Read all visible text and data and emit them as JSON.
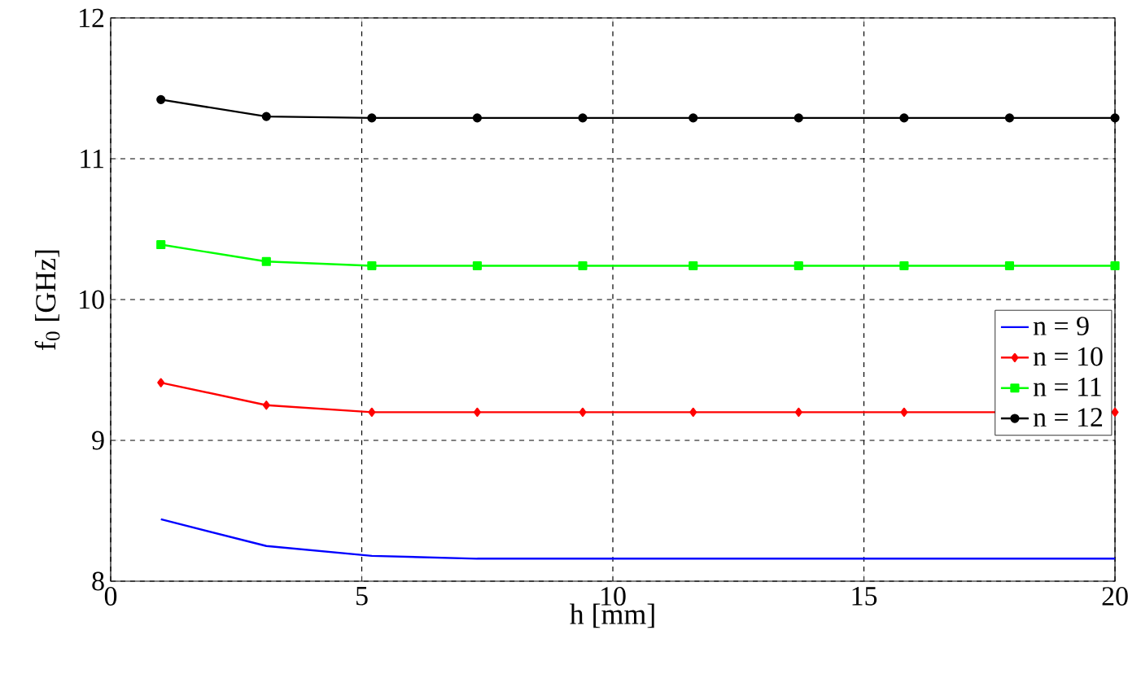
{
  "chart_data": {
    "type": "line",
    "xlabel": "h [mm]",
    "ylabel": "f$_{0}$ [GHz]",
    "x": [
      1,
      3.1,
      5.2,
      7.3,
      9.4,
      11.6,
      13.7,
      15.8,
      17.9,
      20
    ],
    "series": [
      {
        "name": "n = 9",
        "color": "#0000ff",
        "marker": "none",
        "values": [
          8.44,
          8.25,
          8.18,
          8.16,
          8.16,
          8.16,
          8.16,
          8.16,
          8.16,
          8.16
        ]
      },
      {
        "name": "n = 10",
        "color": "#ff0000",
        "marker": "diamond",
        "values": [
          9.41,
          9.25,
          9.2,
          9.2,
          9.2,
          9.2,
          9.2,
          9.2,
          null,
          9.2
        ]
      },
      {
        "name": "n = 11",
        "color": "#00ff00",
        "marker": "square",
        "values": [
          10.39,
          10.27,
          10.24,
          10.24,
          10.24,
          10.24,
          10.24,
          10.24,
          10.24,
          10.24
        ]
      },
      {
        "name": "n = 12",
        "color": "#000000",
        "marker": "circle",
        "values": [
          11.42,
          11.3,
          11.29,
          11.29,
          11.29,
          11.29,
          11.29,
          11.29,
          11.29,
          11.29
        ]
      }
    ],
    "xlim": [
      0,
      20
    ],
    "ylim": [
      8,
      12
    ],
    "xticks": [
      0,
      5,
      10,
      15,
      20
    ],
    "yticks": [
      8,
      9,
      10,
      11,
      12
    ],
    "grid": true,
    "legend": "right",
    "line_style": "solid"
  }
}
